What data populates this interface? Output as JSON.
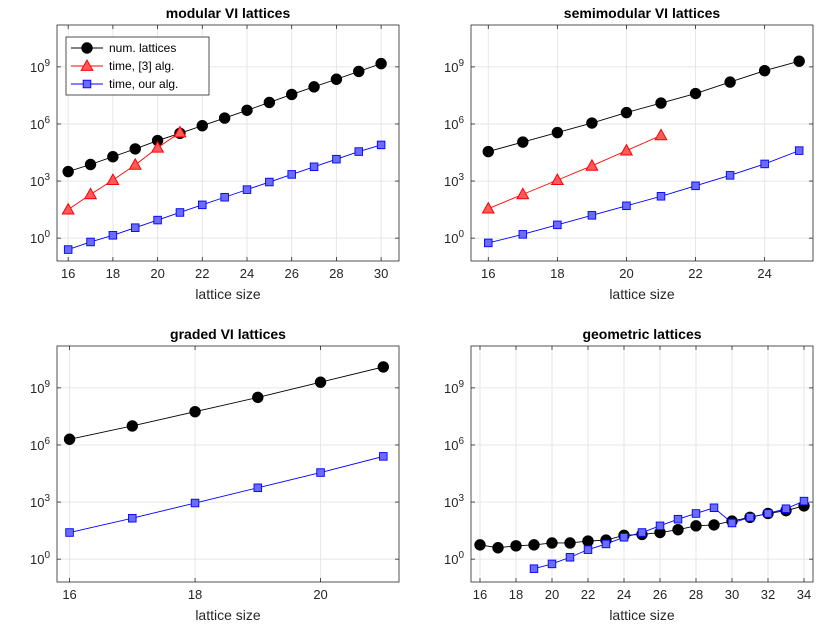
{
  "chart_data": [
    {
      "type": "line",
      "title": "modular VI lattices",
      "xlabel": "lattice size",
      "ylabel": "",
      "yscale": "log",
      "xlim": [
        15.5,
        30.8
      ],
      "ylim_exp": [
        -1.2,
        11.2
      ],
      "xticks": [
        16,
        18,
        20,
        22,
        24,
        26,
        28,
        30
      ],
      "yticks_exp": [
        0,
        3,
        6,
        9
      ],
      "grid": true,
      "legend": "top-left",
      "series": [
        {
          "name": "num. lattices",
          "color": "#000000",
          "marker": "circle",
          "x": [
            16,
            17,
            18,
            19,
            20,
            21,
            22,
            23,
            24,
            25,
            26,
            27,
            28,
            29,
            30
          ],
          "log10_y": [
            3.5,
            3.87,
            4.28,
            4.69,
            5.13,
            5.51,
            5.91,
            6.31,
            6.72,
            7.13,
            7.55,
            7.95,
            8.35,
            8.76,
            9.17
          ]
        },
        {
          "name": "time, [3] alg.",
          "color": "#ff0000",
          "marker": "triangle",
          "x": [
            16,
            17,
            18,
            19,
            20,
            21
          ],
          "log10_y": [
            1.5,
            2.3,
            3.05,
            3.85,
            4.75,
            5.55
          ]
        },
        {
          "name": "time, our alg.",
          "color": "#0000ff",
          "marker": "square",
          "x": [
            16,
            17,
            18,
            19,
            20,
            21,
            22,
            23,
            24,
            25,
            26,
            27,
            28,
            29,
            30
          ],
          "log10_y": [
            -0.6,
            -0.2,
            0.15,
            0.55,
            0.95,
            1.35,
            1.75,
            2.15,
            2.55,
            2.95,
            3.35,
            3.75,
            4.15,
            4.55,
            4.9
          ]
        }
      ]
    },
    {
      "type": "line",
      "title": "semimodular VI lattices",
      "xlabel": "lattice size",
      "ylabel": "",
      "yscale": "log",
      "xlim": [
        15.5,
        25.4
      ],
      "ylim_exp": [
        -1.2,
        11.2
      ],
      "xticks": [
        16,
        18,
        20,
        22,
        24
      ],
      "yticks_exp": [
        0,
        3,
        6,
        9
      ],
      "grid": true,
      "legend": "none",
      "series": [
        {
          "name": "num. lattices",
          "color": "#000000",
          "marker": "circle",
          "x": [
            16,
            17,
            18,
            19,
            20,
            21,
            22,
            23,
            24,
            25
          ],
          "log10_y": [
            4.55,
            5.05,
            5.55,
            6.05,
            6.6,
            7.1,
            7.6,
            8.2,
            8.8,
            9.3
          ]
        },
        {
          "name": "time, [3] alg.",
          "color": "#ff0000",
          "marker": "triangle",
          "x": [
            16,
            17,
            18,
            19,
            20,
            21
          ],
          "log10_y": [
            1.55,
            2.3,
            3.05,
            3.8,
            4.6,
            5.4
          ]
        },
        {
          "name": "time, our alg.",
          "color": "#0000ff",
          "marker": "square",
          "x": [
            16,
            17,
            18,
            19,
            20,
            21,
            22,
            23,
            24,
            25
          ],
          "log10_y": [
            -0.25,
            0.2,
            0.7,
            1.2,
            1.7,
            2.2,
            2.75,
            3.3,
            3.9,
            4.6
          ]
        }
      ]
    },
    {
      "type": "line",
      "title": "graded VI lattices",
      "xlabel": "lattice size",
      "ylabel": "",
      "yscale": "log",
      "xlim": [
        15.8,
        21.25
      ],
      "ylim_exp": [
        -1.2,
        11.2
      ],
      "xticks": [
        16,
        18,
        20
      ],
      "yticks_exp": [
        0,
        3,
        6,
        9
      ],
      "grid": true,
      "legend": "none",
      "series": [
        {
          "name": "num. lattices",
          "color": "#000000",
          "marker": "circle",
          "x": [
            16,
            17,
            18,
            19,
            20,
            21
          ],
          "log10_y": [
            6.3,
            7.0,
            7.75,
            8.5,
            9.3,
            10.1
          ]
        },
        {
          "name": "time, our alg.",
          "color": "#0000ff",
          "marker": "square",
          "x": [
            16,
            17,
            18,
            19,
            20,
            21
          ],
          "log10_y": [
            1.4,
            2.15,
            2.95,
            3.75,
            4.55,
            5.4
          ]
        }
      ]
    },
    {
      "type": "line",
      "title": "geometric lattices",
      "xlabel": "lattice size",
      "ylabel": "",
      "yscale": "log",
      "xlim": [
        15.5,
        34.5
      ],
      "ylim_exp": [
        -1.2,
        11.2
      ],
      "xticks": [
        16,
        18,
        20,
        22,
        24,
        26,
        28,
        30,
        32,
        34
      ],
      "yticks_exp": [
        0,
        3,
        6,
        9
      ],
      "grid": true,
      "legend": "none",
      "series": [
        {
          "name": "num. lattices",
          "color": "#000000",
          "marker": "circle",
          "x": [
            16,
            17,
            18,
            19,
            20,
            21,
            22,
            23,
            24,
            25,
            26,
            27,
            28,
            29,
            30,
            31,
            32,
            33,
            34
          ],
          "log10_y": [
            0.75,
            0.6,
            0.7,
            0.75,
            0.85,
            0.85,
            0.95,
            1.0,
            1.25,
            1.3,
            1.4,
            1.55,
            1.75,
            1.8,
            2.0,
            2.2,
            2.4,
            2.55,
            2.8
          ]
        },
        {
          "name": "time, our alg.",
          "color": "#0000ff",
          "marker": "square",
          "x": [
            19,
            20,
            21,
            22,
            23,
            24,
            25,
            26,
            27,
            28,
            29,
            30,
            31,
            32,
            33,
            34
          ],
          "log10_y": [
            -0.5,
            -0.25,
            0.1,
            0.5,
            0.8,
            1.15,
            1.4,
            1.75,
            2.1,
            2.4,
            2.7,
            1.9,
            2.2,
            2.4,
            2.65,
            3.05
          ]
        }
      ]
    }
  ]
}
